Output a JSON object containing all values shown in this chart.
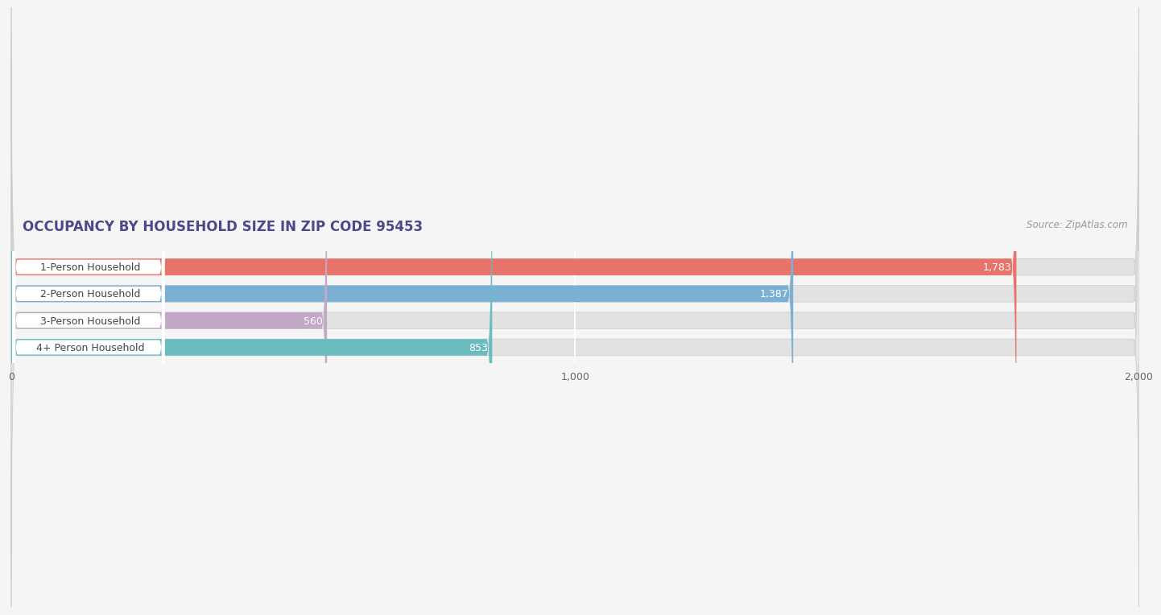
{
  "title": "OCCUPANCY BY HOUSEHOLD SIZE IN ZIP CODE 95453",
  "source": "Source: ZipAtlas.com",
  "categories": [
    "1-Person Household",
    "2-Person Household",
    "3-Person Household",
    "4+ Person Household"
  ],
  "values": [
    1783,
    1387,
    560,
    853
  ],
  "bar_colors": [
    "#E8736A",
    "#7BAFD4",
    "#C4A8C8",
    "#6BBCBE"
  ],
  "bar_labels": [
    "1,783",
    "1,387",
    "560",
    "853"
  ],
  "xlim": [
    0,
    2000
  ],
  "xticks": [
    0,
    1000,
    2000
  ],
  "xtick_labels": [
    "0",
    "1,000",
    "2,000"
  ],
  "title_fontsize": 12,
  "source_fontsize": 8.5,
  "label_fontsize": 9,
  "bar_label_fontsize": 9,
  "background_color": "#f5f5f5",
  "bar_bg_color": "#e2e2e2",
  "title_color": "#4a4a8a",
  "source_color": "#999999",
  "label_bg_color": "#ffffff",
  "label_text_color": "#444444",
  "value_label_color_inside": "#ffffff",
  "value_label_color_outside": "#555555"
}
